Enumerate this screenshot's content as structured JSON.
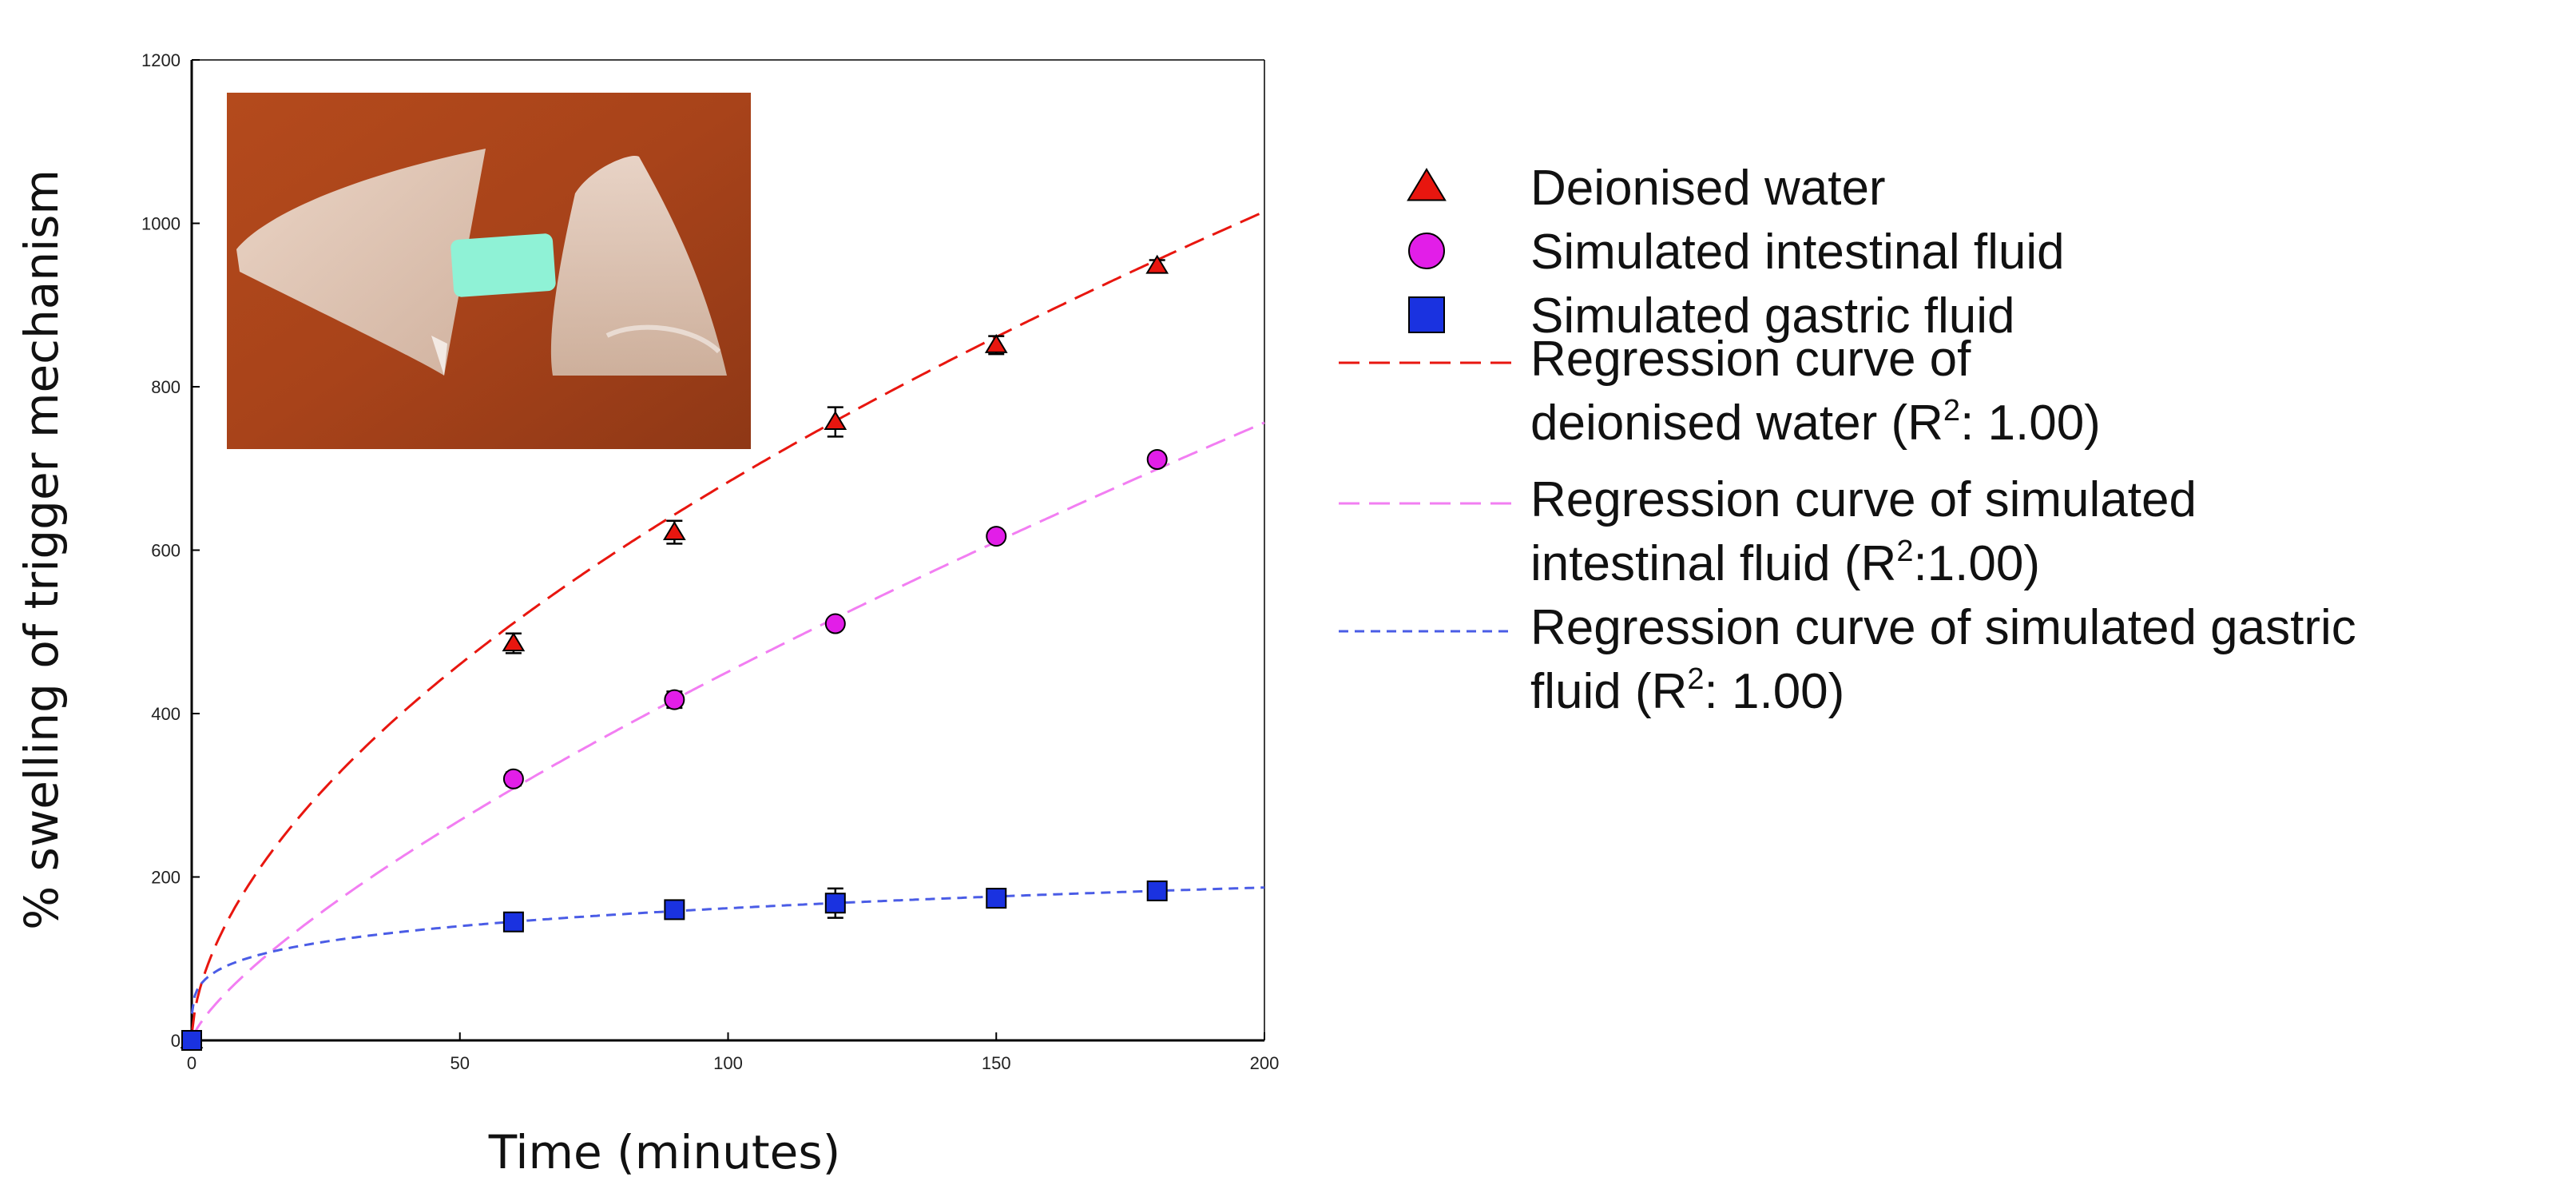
{
  "chart_data": {
    "type": "scatter",
    "xlabel": "Time (minutes)",
    "ylabel": "% swelling of trigger mechanism",
    "xlim": [
      0,
      200
    ],
    "ylim": [
      0,
      1200
    ],
    "xticks": [
      0,
      50,
      100,
      150,
      200
    ],
    "yticks": [
      0,
      200,
      400,
      600,
      800,
      1000,
      1200
    ],
    "grid": false,
    "legend_position": "right, outside plot",
    "inset": "photograph of hydrogel pieces, top-left of plot area",
    "series": [
      {
        "name": "Deionised water",
        "marker": "triangle",
        "color": "#e8160f",
        "x": [
          0,
          60,
          90,
          120,
          150,
          180
        ],
        "y": [
          0,
          486,
          622,
          757,
          851,
          948
        ],
        "err": [
          0,
          12,
          14,
          18,
          11,
          7
        ]
      },
      {
        "name": "Simulated intestinal fluid",
        "marker": "circle",
        "color": "#e21ee8",
        "x": [
          0,
          60,
          90,
          120,
          150,
          180
        ],
        "y": [
          0,
          320,
          417,
          510,
          617,
          711
        ],
        "err": [
          0,
          8,
          10,
          6,
          6,
          7
        ]
      },
      {
        "name": "Simulated gastric fluid",
        "marker": "square",
        "color": "#1a32e0",
        "x": [
          0,
          60,
          90,
          120,
          150,
          180
        ],
        "y": [
          0,
          145,
          160,
          168,
          174,
          183
        ],
        "err": [
          0,
          9,
          9,
          18,
          7,
          7
        ]
      }
    ],
    "regression_curves": [
      {
        "name_lines": [
          "Regression curve of",
          "deionised water (R",
          "2",
          ": 1.00)"
        ],
        "color": "#e8160f",
        "dash": "long",
        "model": "power",
        "a": 49.5,
        "b": 0.57
      },
      {
        "name_lines": [
          "Regression curve of simulated",
          "intestinal fluid (R",
          "2",
          ":1.00)"
        ],
        "color": "#f27ef2",
        "dash": "long",
        "model": "power",
        "a": 14.6,
        "b": 0.745
      },
      {
        "name_lines": [
          "Regression curve of simulated gastric",
          "fluid (R",
          "2",
          ": 1.00)"
        ],
        "color": "#4a5ce6",
        "dash": "short",
        "model": "power",
        "a": 61.5,
        "b": 0.21
      }
    ]
  }
}
